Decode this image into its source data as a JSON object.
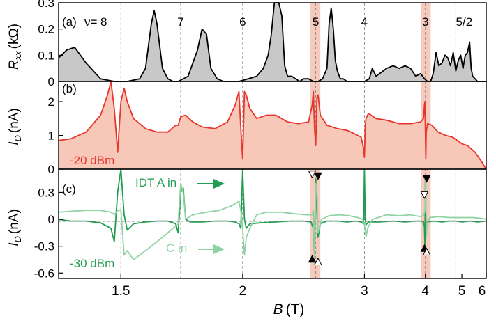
{
  "chart_data": [
    {
      "panel_id": "a",
      "panel_label": "(a)",
      "type": "area",
      "ylabel_main": "R",
      "ylabel_sub": "xx",
      "ylabel_unit": "(kΩ)",
      "ylim": [
        0,
        0.3
      ],
      "yticks": [
        "0",
        "0.1",
        "0.2",
        "0.3"
      ],
      "ytick_values": [
        0,
        0.1,
        0.2,
        0.3
      ],
      "filling_prefix": "ν=",
      "filling_labels": [
        {
          "text": "8",
          "B": 1.5
        },
        {
          "text": "7",
          "B": 1.71
        },
        {
          "text": "6",
          "B": 2.0
        },
        {
          "text": "5",
          "B": 2.5
        },
        {
          "text": "4",
          "B": 3.0
        },
        {
          "text": "3",
          "B": 4.0
        },
        {
          "text": "5/2",
          "B": 4.8
        }
      ],
      "series": [
        {
          "color": "#000000",
          "fill": "#c8c8c8",
          "x": [
            1.33,
            1.35,
            1.37,
            1.4,
            1.44,
            1.48,
            1.52,
            1.56,
            1.58,
            1.6,
            1.61,
            1.62,
            1.64,
            1.66,
            1.68,
            1.7,
            1.74,
            1.78,
            1.8,
            1.82,
            1.84,
            1.87,
            1.9,
            1.94,
            1.98,
            2.03,
            2.08,
            2.12,
            2.15,
            2.17,
            2.19,
            2.21,
            2.22,
            2.24,
            2.26,
            2.28,
            2.31,
            2.34,
            2.37,
            2.4,
            2.44,
            2.48,
            2.52,
            2.56,
            2.6,
            2.62,
            2.64,
            2.66,
            2.68,
            2.7,
            2.73,
            2.76,
            2.8,
            2.85,
            2.92,
            3.0,
            3.06,
            3.1,
            3.15,
            3.2,
            3.3,
            3.4,
            3.5,
            3.6,
            3.7,
            3.8,
            3.9,
            3.98,
            4.05,
            4.12,
            4.18,
            4.25,
            4.32,
            4.4,
            4.48,
            4.56,
            4.64,
            4.72,
            4.8,
            4.88,
            4.96,
            5.04,
            5.12,
            5.2,
            5.28,
            5.34,
            5.4,
            5.5,
            5.6,
            5.75,
            6.0
          ],
          "y": [
            0.09,
            0.12,
            0.13,
            0.07,
            0.01,
            0.0,
            0.0,
            0.01,
            0.05,
            0.22,
            0.27,
            0.22,
            0.05,
            0.01,
            0.0,
            0.0,
            0.02,
            0.12,
            0.2,
            0.18,
            0.05,
            0.01,
            0.0,
            0.0,
            0.0,
            0.01,
            0.02,
            0.05,
            0.1,
            0.18,
            0.3,
            0.3,
            0.3,
            0.25,
            0.06,
            0.02,
            0.02,
            0.01,
            0.0,
            0.01,
            0.01,
            0.0,
            0.0,
            0.01,
            0.05,
            0.22,
            0.28,
            0.2,
            0.08,
            0.04,
            0.01,
            0.01,
            0.0,
            0.0,
            0.0,
            0.0,
            0.01,
            0.05,
            0.02,
            0.03,
            0.05,
            0.06,
            0.05,
            0.06,
            0.05,
            0.02,
            0.03,
            0.01,
            0.0,
            0.0,
            0.03,
            0.11,
            0.06,
            0.07,
            0.1,
            0.09,
            0.06,
            0.11,
            0.04,
            0.08,
            0.1,
            0.05,
            0.1,
            0.11,
            0.15,
            0.05,
            0.02,
            0.01,
            0.0,
            0.0,
            0.0
          ]
        }
      ]
    },
    {
      "panel_id": "b",
      "panel_label": "(b)",
      "type": "area",
      "ylabel_main": "I",
      "ylabel_sub": "D",
      "ylabel_unit": "(nA)",
      "ylim": [
        0,
        2.6
      ],
      "yticks": [
        "0",
        "1",
        "2"
      ],
      "ytick_values": [
        0,
        1,
        2
      ],
      "annotation": "-20 dBm",
      "series": [
        {
          "color": "#e8352b",
          "fill": "#f7c8b8",
          "x": [
            1.33,
            1.36,
            1.4,
            1.44,
            1.46,
            1.47,
            1.48,
            1.49,
            1.5,
            1.51,
            1.52,
            1.54,
            1.58,
            1.62,
            1.66,
            1.69,
            1.7,
            1.71,
            1.73,
            1.76,
            1.8,
            1.86,
            1.92,
            1.96,
            1.98,
            1.99,
            2.0,
            2.01,
            2.02,
            2.04,
            2.08,
            2.14,
            2.2,
            2.28,
            2.36,
            2.44,
            2.47,
            2.48,
            2.49,
            2.5,
            2.51,
            2.52,
            2.54,
            2.6,
            2.7,
            2.8,
            2.88,
            2.96,
            2.99,
            3.0,
            3.01,
            3.02,
            3.05,
            3.15,
            3.3,
            3.5,
            3.7,
            3.9,
            3.96,
            3.98,
            3.99,
            4.0,
            4.01,
            4.02,
            4.05,
            4.15,
            4.3,
            4.5,
            4.7,
            4.85,
            5.0,
            5.2,
            5.5,
            5.8,
            6.0
          ],
          "y": [
            0.85,
            0.9,
            1.1,
            1.6,
            2.2,
            2.8,
            1.8,
            0.5,
            2.0,
            2.4,
            2.0,
            1.5,
            1.2,
            1.1,
            1.1,
            1.3,
            1.3,
            1.55,
            1.6,
            1.4,
            1.25,
            1.2,
            1.4,
            1.9,
            2.3,
            1.2,
            0.3,
            2.3,
            2.2,
            1.8,
            1.5,
            1.6,
            1.6,
            1.4,
            1.35,
            1.4,
            1.9,
            2.3,
            1.2,
            0.7,
            2.1,
            2.2,
            1.6,
            1.3,
            1.2,
            1.15,
            1.05,
            0.95,
            0.6,
            0.35,
            1.3,
            1.5,
            1.65,
            1.5,
            1.45,
            1.35,
            1.35,
            1.4,
            1.5,
            1.9,
            2.0,
            1.2,
            0.3,
            1.1,
            1.35,
            1.3,
            1.1,
            1.0,
            0.95,
            0.85,
            0.75,
            0.7,
            0.5,
            0.2,
            0.0
          ]
        }
      ]
    },
    {
      "panel_id": "c",
      "panel_label": "(c)",
      "type": "line",
      "ylabel_main": "I",
      "ylabel_sub": "D",
      "ylabel_unit": "(nA)",
      "ylim": [
        -0.66,
        0.56
      ],
      "yticks": [
        "0.3",
        "0",
        "-0.3",
        "-0.6"
      ],
      "ytick_values": [
        0.3,
        0,
        -0.3,
        -0.6
      ],
      "annotation": "-30 dBm",
      "label_a": "IDT A in",
      "label_c": "C in",
      "series": [
        {
          "color": "#1f9e4f",
          "x": [
            1.33,
            1.36,
            1.4,
            1.44,
            1.47,
            1.48,
            1.49,
            1.5,
            1.51,
            1.52,
            1.54,
            1.58,
            1.62,
            1.66,
            1.69,
            1.7,
            1.71,
            1.72,
            1.73,
            1.75,
            1.8,
            1.86,
            1.92,
            1.96,
            1.98,
            1.99,
            2.0,
            2.01,
            2.02,
            2.04,
            2.1,
            2.2,
            2.3,
            2.4,
            2.46,
            2.48,
            2.49,
            2.5,
            2.51,
            2.52,
            2.54,
            2.6,
            2.7,
            2.8,
            2.9,
            2.96,
            2.99,
            3.0,
            3.01,
            3.02,
            3.05,
            3.2,
            3.4,
            3.6,
            3.8,
            3.9,
            3.96,
            3.98,
            3.99,
            4.0,
            4.01,
            4.02,
            4.05,
            4.2,
            4.4,
            4.6,
            4.8,
            5.0,
            5.3,
            5.6,
            6.0
          ],
          "y": [
            0.0,
            -0.02,
            -0.02,
            -0.04,
            -0.1,
            -0.25,
            0.3,
            0.6,
            0.05,
            -0.12,
            -0.05,
            -0.03,
            -0.02,
            -0.02,
            -0.05,
            -0.15,
            0.3,
            0.35,
            0.0,
            -0.03,
            -0.03,
            -0.02,
            -0.02,
            -0.03,
            -0.05,
            -0.1,
            0.55,
            0.0,
            -0.1,
            -0.05,
            -0.04,
            -0.03,
            -0.02,
            -0.02,
            -0.03,
            -0.1,
            -0.45,
            0.45,
            0.1,
            -0.2,
            -0.05,
            -0.02,
            -0.02,
            -0.03,
            -0.02,
            -0.03,
            -0.05,
            0.62,
            0.0,
            -0.06,
            -0.03,
            -0.03,
            -0.02,
            -0.03,
            -0.02,
            -0.02,
            -0.03,
            -0.08,
            -0.3,
            0.45,
            0.1,
            -0.05,
            -0.03,
            -0.02,
            -0.03,
            -0.02,
            -0.02,
            -0.03,
            -0.02,
            -0.03,
            -0.02
          ]
        },
        {
          "color": "#8fd3a4",
          "x": [
            1.33,
            1.36,
            1.4,
            1.44,
            1.47,
            1.48,
            1.49,
            1.5,
            1.51,
            1.52,
            1.54,
            1.56,
            1.6,
            1.64,
            1.68,
            1.7,
            1.71,
            1.72,
            1.73,
            1.76,
            1.82,
            1.88,
            1.94,
            1.98,
            1.99,
            2.0,
            2.01,
            2.02,
            2.04,
            2.08,
            2.14,
            2.24,
            2.34,
            2.42,
            2.47,
            2.48,
            2.49,
            2.5,
            2.51,
            2.52,
            2.55,
            2.62,
            2.72,
            2.82,
            2.92,
            2.98,
            3.0,
            3.02,
            3.04,
            3.1,
            3.3,
            3.5,
            3.7,
            3.9,
            3.97,
            3.99,
            4.0,
            4.01,
            4.02,
            4.04,
            4.1,
            4.3,
            4.6,
            5.0,
            5.4,
            5.8,
            6.0
          ],
          "y": [
            0.08,
            0.09,
            0.1,
            0.1,
            0.08,
            0.05,
            0.1,
            0.1,
            -0.4,
            -0.35,
            -0.45,
            -0.4,
            -0.3,
            -0.2,
            -0.1,
            -0.05,
            0.4,
            0.3,
            0.0,
            0.05,
            0.08,
            0.1,
            0.15,
            0.2,
            0.1,
            -0.1,
            -0.4,
            -0.2,
            -0.1,
            0.05,
            0.08,
            0.08,
            0.06,
            0.05,
            0.05,
            0.1,
            -0.5,
            0.4,
            0.3,
            -0.15,
            0.0,
            0.04,
            0.05,
            0.04,
            0.02,
            0.0,
            -0.05,
            -0.2,
            -0.1,
            0.0,
            0.05,
            0.04,
            0.05,
            0.03,
            0.05,
            0.1,
            0.35,
            0.5,
            -0.2,
            -0.05,
            0.02,
            0.03,
            0.02,
            0.02,
            0.02,
            0.01,
            0.0
          ]
        }
      ]
    }
  ],
  "axis": {
    "xlabel_var": "B",
    "xlabel_unit": "(T)",
    "xscale": "reciprocal",
    "xlim": [
      1.33,
      6.0
    ],
    "xticks": [
      "1.5",
      "2",
      "3",
      "4",
      "5",
      "6"
    ],
    "xtick_values": [
      1.5,
      2,
      3,
      4,
      5,
      6
    ]
  },
  "highlight_bands": [
    [
      2.45,
      2.54
    ],
    [
      3.9,
      4.12
    ]
  ],
  "markers": {
    "open_down": [
      {
        "B": 2.47,
        "y": 0.5
      },
      {
        "B": 3.98,
        "y": 0.27
      }
    ],
    "filled_down": [
      {
        "B": 2.52,
        "y": 0.48
      },
      {
        "B": 4.03,
        "y": 0.45
      }
    ],
    "filled_up": [
      {
        "B": 2.47,
        "y": -0.44
      },
      {
        "B": 3.98,
        "y": -0.32
      }
    ],
    "open_up": [
      {
        "B": 2.52,
        "y": -0.47
      },
      {
        "B": 4.03,
        "y": -0.36
      }
    ]
  },
  "colors": {
    "axis": "#000000",
    "grid_dash": "#888888",
    "band": "#f4b8a8",
    "red": "#e8352b",
    "green": "#1f9e4f",
    "light_green": "#8fd3a4"
  }
}
